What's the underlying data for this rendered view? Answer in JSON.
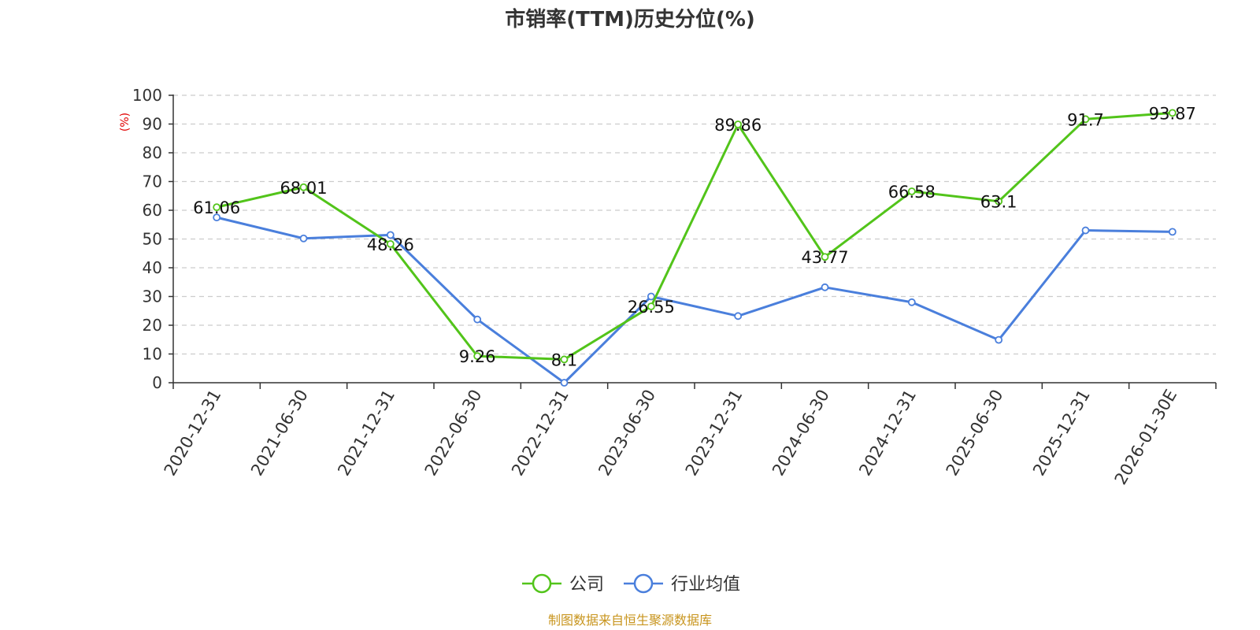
{
  "chart_data": {
    "type": "line",
    "title": "市销率(TTM)历史分位(%)",
    "ylabel": "(%)",
    "ylim": [
      0,
      100
    ],
    "yticks": [
      0,
      10,
      20,
      30,
      40,
      50,
      60,
      70,
      80,
      90,
      100
    ],
    "grid": true,
    "categories": [
      "2020-12-31",
      "2021-06-30",
      "2021-12-31",
      "2022-06-30",
      "2022-12-31",
      "2023-06-30",
      "2023-12-31",
      "2024-06-30",
      "2024-12-31",
      "2025-06-30",
      "2025-12-31",
      "2026-01-30E"
    ],
    "series": [
      {
        "name": "公司",
        "color": "#52c41a",
        "values": [
          61.06,
          68.01,
          48.26,
          9.26,
          8.1,
          26.55,
          89.86,
          43.77,
          66.58,
          63.1,
          91.7,
          93.87
        ],
        "labels": [
          "61.06",
          "68.01",
          "48.26",
          "9.26",
          "8.1",
          "26.55",
          "89.86",
          "43.77",
          "66.58",
          "63.1",
          "91.7",
          "93.87"
        ]
      },
      {
        "name": "行业均值",
        "color": "#4a7fdc",
        "values": [
          57.5,
          50.2,
          51.4,
          22.0,
          0.0,
          30.0,
          23.2,
          33.2,
          28.0,
          14.9,
          53.0,
          52.5
        ]
      }
    ],
    "legend_position": "bottom-center",
    "source": "制图数据来自恒生聚源数据库"
  }
}
